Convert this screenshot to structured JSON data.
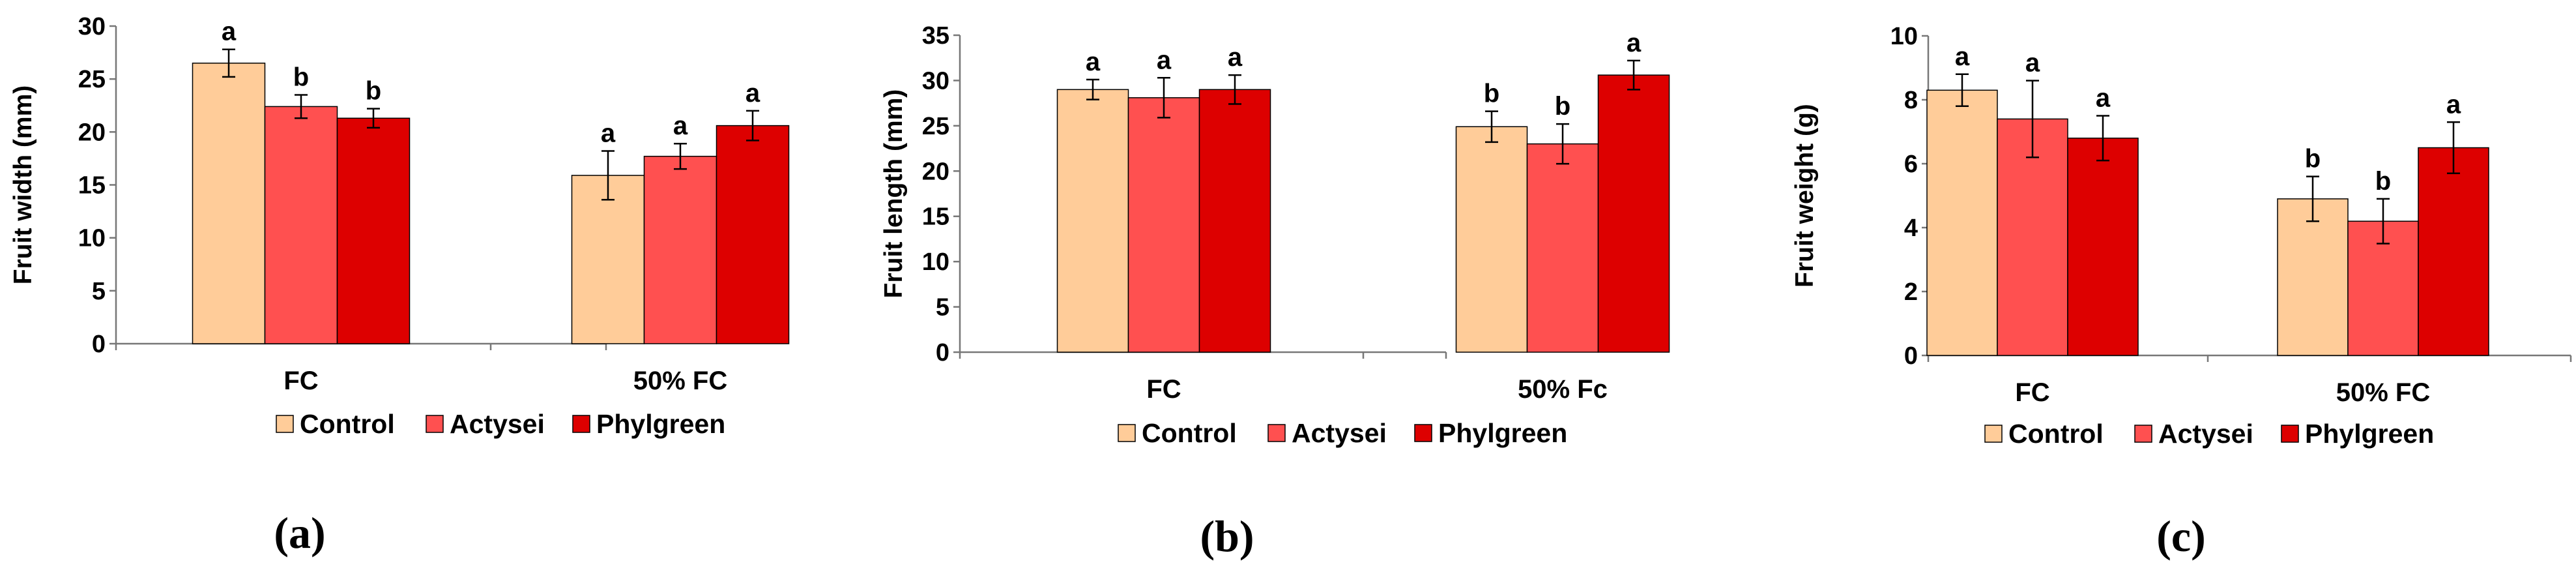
{
  "colors": {
    "Control": "#FFCC99",
    "Actysei": "#FF5050",
    "Phylgreen": "#DD0000"
  },
  "legend": {
    "items": [
      "Control",
      "Actysei",
      "Phylgreen"
    ]
  },
  "chart_data": [
    {
      "type": "bar",
      "panel_label": "(a)",
      "ylabel": "Fruit width (mm)",
      "ylim": [
        0,
        30
      ],
      "yticks": [
        0,
        5,
        10,
        15,
        20,
        25,
        30
      ],
      "categories": [
        "FC",
        "50% FC"
      ],
      "series": [
        {
          "name": "Control",
          "values": [
            26.5,
            15.9
          ],
          "errors": [
            1.3,
            2.3
          ],
          "letters": [
            "a",
            "a"
          ]
        },
        {
          "name": "Actysei",
          "values": [
            22.4,
            17.7
          ],
          "errors": [
            1.1,
            1.2
          ],
          "letters": [
            "b",
            "a"
          ]
        },
        {
          "name": "Phylgreen",
          "values": [
            21.3,
            20.6
          ],
          "errors": [
            0.9,
            1.4
          ],
          "letters": [
            "b",
            "a"
          ]
        }
      ]
    },
    {
      "type": "bar",
      "panel_label": "(b)",
      "ylabel": "Fruit length (mm)",
      "ylim": [
        0,
        35
      ],
      "yticks": [
        0,
        5,
        10,
        15,
        20,
        25,
        30,
        35
      ],
      "categories": [
        "FC",
        "50% Fc"
      ],
      "series": [
        {
          "name": "Control",
          "values": [
            29.0,
            24.9
          ],
          "errors": [
            1.1,
            1.7
          ],
          "letters": [
            "a",
            "b"
          ]
        },
        {
          "name": "Actysei",
          "values": [
            28.1,
            23.0
          ],
          "errors": [
            2.2,
            2.2
          ],
          "letters": [
            "a",
            "b"
          ]
        },
        {
          "name": "Phylgreen",
          "values": [
            29.0,
            30.6
          ],
          "errors": [
            1.6,
            1.6
          ],
          "letters": [
            "a",
            "a"
          ]
        }
      ]
    },
    {
      "type": "bar",
      "panel_label": "(c)",
      "ylabel": "Fruit weight (g)",
      "ylim": [
        0,
        10
      ],
      "yticks": [
        0,
        2,
        4,
        6,
        8,
        10
      ],
      "categories": [
        "FC",
        "50% FC"
      ],
      "series": [
        {
          "name": "Control",
          "values": [
            8.3,
            4.9
          ],
          "errors": [
            0.5,
            0.7
          ],
          "letters": [
            "a",
            "b"
          ]
        },
        {
          "name": "Actysei",
          "values": [
            7.4,
            4.2
          ],
          "errors": [
            1.2,
            0.7
          ],
          "letters": [
            "a",
            "b"
          ]
        },
        {
          "name": "Phylgreen",
          "values": [
            6.8,
            6.5
          ],
          "errors": [
            0.7,
            0.8
          ],
          "letters": [
            "a",
            "a"
          ]
        }
      ]
    }
  ]
}
